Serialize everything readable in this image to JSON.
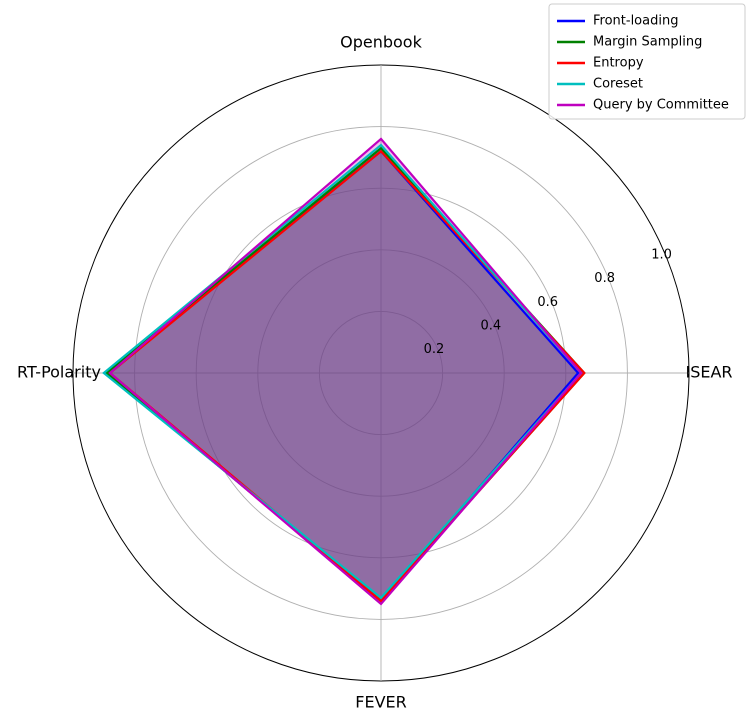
{
  "chart_data": {
    "type": "radar",
    "title": "",
    "axes": [
      "ISEAR",
      "Openbook",
      "RT-Polarity",
      "FEVER"
    ],
    "rlim": [
      0,
      1.0
    ],
    "rticks": [
      0.2,
      0.4,
      0.6,
      0.8,
      1.0
    ],
    "rtick_labels": [
      "0.2",
      "0.4",
      "0.6",
      "0.8",
      "1.0"
    ],
    "grid": true,
    "legend_position": "top-right",
    "fill_color": "#8e6ca6",
    "series": [
      {
        "name": "Front-loading",
        "color": "#0000ff",
        "values": [
          0.64,
          0.72,
          0.89,
          0.74
        ]
      },
      {
        "name": "Margin Sampling",
        "color": "#008000",
        "values": [
          0.66,
          0.73,
          0.89,
          0.74
        ]
      },
      {
        "name": "Entropy",
        "color": "#ff0000",
        "values": [
          0.66,
          0.72,
          0.88,
          0.74
        ]
      },
      {
        "name": "Coreset",
        "color": "#00bfbf",
        "values": [
          0.65,
          0.74,
          0.9,
          0.73
        ]
      },
      {
        "name": "Query by Committee",
        "color": "#bf00bf",
        "values": [
          0.65,
          0.76,
          0.88,
          0.75
        ]
      }
    ]
  }
}
